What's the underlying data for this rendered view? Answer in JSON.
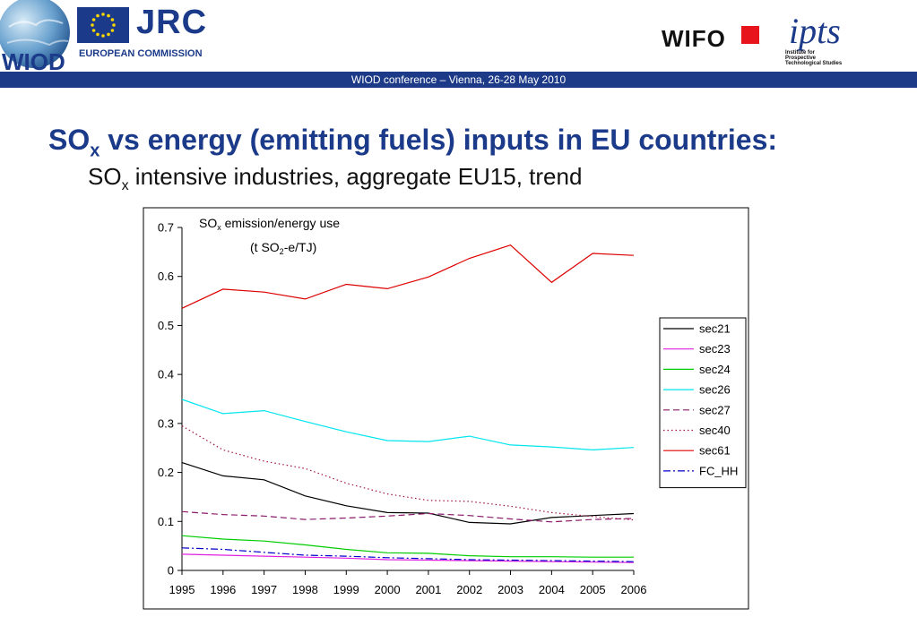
{
  "header": {
    "jrc_label": "JRC",
    "commission_label": "EUROPEAN COMMISSION",
    "wiod_logo_label": "WIOD",
    "wifo_label": "WIFO",
    "ipts_label": "ipts",
    "ipts_sub_lines": [
      "Institute for",
      "Prospective",
      "Technological Studies"
    ],
    "banner_text": "WIOD conference – Vienna, 26-28 May 2010",
    "brand_blue": "#1c3a88",
    "wifo_red": "#e8141b"
  },
  "slide": {
    "title_main": "SO",
    "title_sub": "x",
    "title_rest": " vs energy (emitting fuels) inputs in EU countries:",
    "subtitle_main": "SO",
    "subtitle_sub": "x",
    "subtitle_rest": " intensive industries, aggregate EU15, trend"
  },
  "chart_data": {
    "type": "line",
    "title_line1_main": "SO",
    "title_line1_sub": "x",
    "title_line1_rest": " emission/energy use",
    "title_line2_pre": "(t SO",
    "title_line2_sub": "2",
    "title_line2_rest": "-e/TJ)",
    "categories": [
      "1995",
      "1996",
      "1997",
      "1998",
      "1999",
      "2000",
      "2001",
      "2002",
      "2003",
      "2004",
      "2005",
      "2006"
    ],
    "ylim": [
      0,
      0.7
    ],
    "yticks": [
      "0",
      "0.1",
      "0.2",
      "0.3",
      "0.4",
      "0.5",
      "0.6",
      "0.7"
    ],
    "grid": false,
    "legend_position": "right",
    "series": [
      {
        "name": "sec21",
        "color": "#000000",
        "dash": "solid",
        "values": [
          0.22,
          0.193,
          0.185,
          0.152,
          0.132,
          0.118,
          0.117,
          0.098,
          0.095,
          0.108,
          0.112,
          0.116
        ]
      },
      {
        "name": "sec23",
        "color": "#e020e0",
        "dash": "solid",
        "values": [
          0.033,
          0.031,
          0.029,
          0.027,
          0.025,
          0.022,
          0.021,
          0.02,
          0.019,
          0.018,
          0.017,
          0.016
        ]
      },
      {
        "name": "sec24",
        "color": "#00cc00",
        "dash": "solid",
        "values": [
          0.071,
          0.064,
          0.06,
          0.052,
          0.043,
          0.036,
          0.035,
          0.03,
          0.028,
          0.028,
          0.027,
          0.027
        ]
      },
      {
        "name": "sec26",
        "color": "#00e5ee",
        "dash": "solid",
        "values": [
          0.349,
          0.32,
          0.326,
          0.304,
          0.283,
          0.265,
          0.263,
          0.274,
          0.256,
          0.252,
          0.246,
          0.251
        ]
      },
      {
        "name": "sec27",
        "color": "#8b1a6b",
        "dash": "dashed",
        "values": [
          0.12,
          0.114,
          0.111,
          0.104,
          0.107,
          0.111,
          0.116,
          0.112,
          0.105,
          0.099,
          0.104,
          0.106
        ]
      },
      {
        "name": "sec40",
        "color": "#a0104a",
        "dash": "dotted",
        "values": [
          0.295,
          0.246,
          0.223,
          0.208,
          0.178,
          0.156,
          0.143,
          0.141,
          0.131,
          0.118,
          0.11,
          0.103
        ]
      },
      {
        "name": "sec61",
        "color": "#dd0000",
        "dash": "solid",
        "values": [
          0.535,
          0.574,
          0.568,
          0.554,
          0.584,
          0.575,
          0.599,
          0.637,
          0.664,
          0.588,
          0.647,
          0.643
        ]
      },
      {
        "name": "FC_HH",
        "color": "#0000cc",
        "dash": "dashdot",
        "values": [
          0.046,
          0.043,
          0.037,
          0.031,
          0.029,
          0.026,
          0.024,
          0.022,
          0.021,
          0.02,
          0.019,
          0.018
        ]
      }
    ]
  }
}
